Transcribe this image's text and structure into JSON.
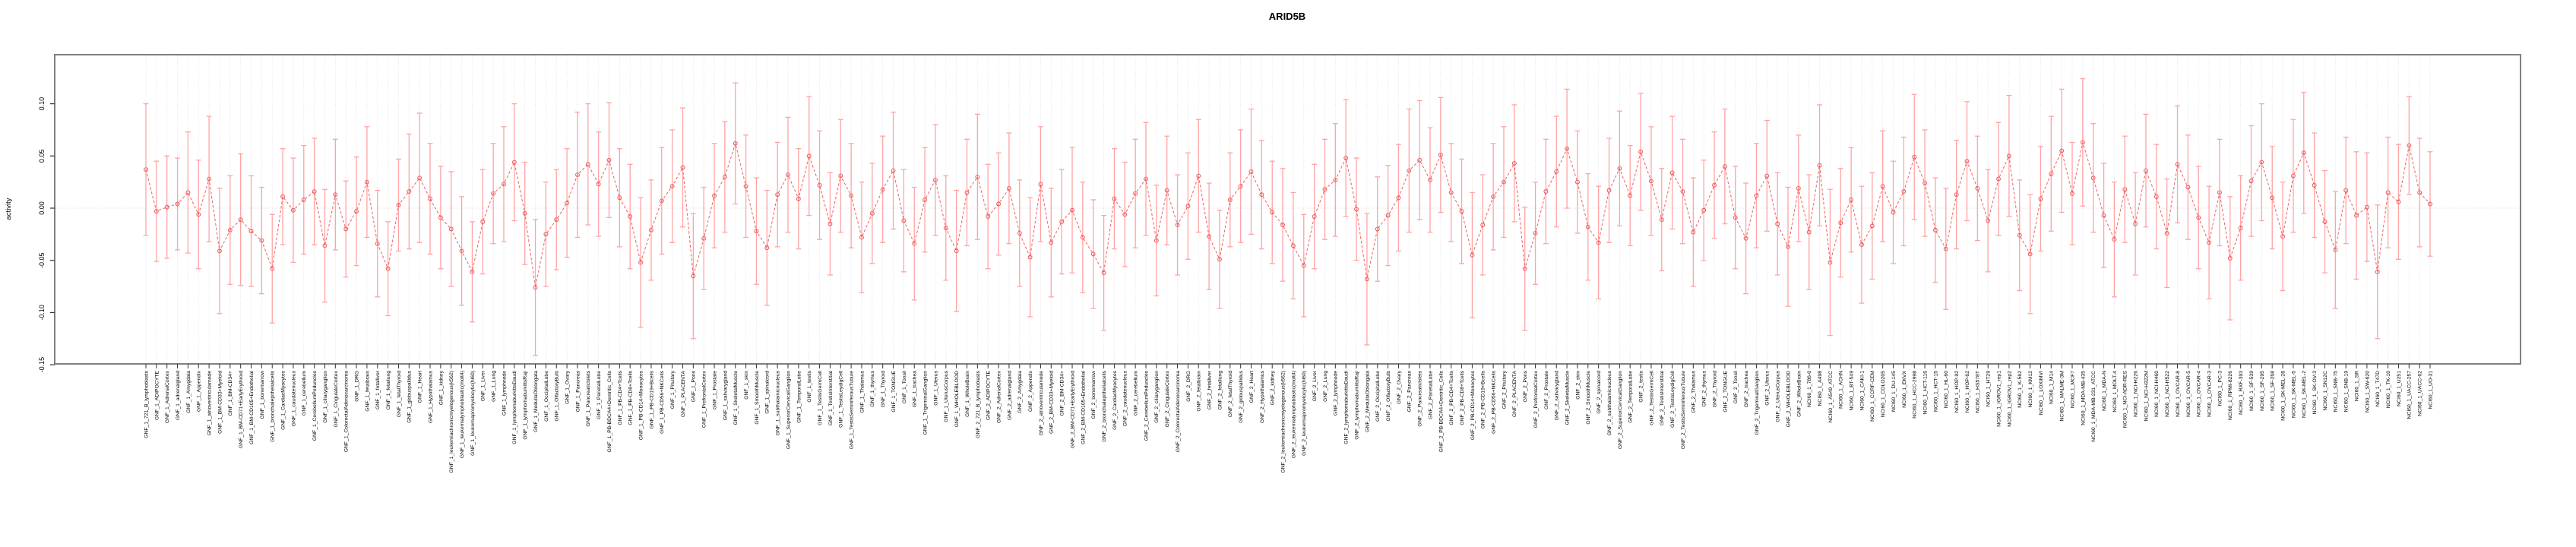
{
  "chart_data": {
    "type": "line",
    "title": "ARID5B",
    "ylabel": "activity",
    "xlabel": "",
    "ylim": [
      -0.15,
      0.147
    ],
    "yticks": [
      0.1,
      0.05,
      0.0,
      -0.05,
      -0.1,
      -0.15
    ],
    "ytick_labels": [
      "0.10",
      "0.05",
      "0.00",
      "-0.05",
      "-0.10",
      "-0.15"
    ],
    "grid": "vertical dotted gridline per category, dotted horizontal line at y=0",
    "legend_position": "none",
    "point_style": "open-circle",
    "line_style": "dashed",
    "error_bars": true,
    "categories": [
      "GNF_1_721_B_lymphoblasts",
      "GNF_1_ADIPOCYTE",
      "GNF_1_AdrenalCortex",
      "GNF_1_adrenalgland",
      "GNF_1_Amygdala",
      "GNF_1_Appendix",
      "GNF_1_atrioventricularnode",
      "GNF_1_BM-CD33+Myeloid",
      "GNF_1_BM-CD34+",
      "GNF_1_BM-CD71+EarlyErythroid",
      "GNF_1_BM-CD105+Endothelial",
      "GNF_1_bonemarrow",
      "GNF_1_bronchialepithelialcells",
      "GNF_1_CardiacMyocytes",
      "GNF_1_caudatenucleus",
      "GNF_1_cerebellum",
      "GNF_1_CerebellumPeduncles",
      "GNF_1_ciliaryganglion",
      "GNF_1_CingulateCortex",
      "GNF_1_ColorectalAdenocarcinoma",
      "GNF_1_DRG",
      "GNF_1_fetalbrain",
      "GNF_1_fetalliver",
      "GNF_1_fetallung",
      "GNF_1_fetalThyroid",
      "GNF_1_globuspallidus",
      "GNF_1_Heart",
      "GNF_1_Hypothalamus",
      "GNF_1_kidney",
      "GNF_1_leukemiachronicmyelogenous(k562)",
      "GNF_1_leukemialymphoblastic(molt4)",
      "GNF_1_leukemiapromyelocytic(hl60)",
      "GNF_1_Liver",
      "GNF_1_Lung",
      "GNF_1_lymphnode",
      "GNF_1_lymphomaburkittsDaudi",
      "GNF_1_lymphomaburkittsRaji",
      "GNF_1_MedullaOblongata",
      "GNF_1_OccipitalLobe",
      "GNF_1_OlfactoryBulb",
      "GNF_1_Ovary",
      "GNF_1_Pancreas",
      "GNF_1_PancreaticIslets",
      "GNF_1_ParietalLobe",
      "GNF_1_PB-BDCA4+Dentritic_Cells",
      "GNF_1_PB-CD4+Tcells",
      "GNF_1_PB-CD8+Tcells",
      "GNF_1_PB-CD14+Monocytes",
      "GNF_1_PB-CD19+Bcells",
      "GNF_1_PB-CD56+NKCells",
      "GNF_1_Pituitary",
      "GNF_1_PLACENTA",
      "GNF_1_Pons",
      "GNF_1_PrefrontalCortex",
      "GNF_1_Prostate",
      "GNF_1_salivarygland",
      "GNF_1_SkeletalMuscle",
      "GNF_1_skin",
      "GNF_1_SmoothMuscle",
      "GNF_1_spinalcord",
      "GNF_1_subthalamicnucleus",
      "GNF_1_SuperiorCervicalGanglion",
      "GNF_1_TemporalLobe",
      "GNF_1_testis",
      "GNF_1_TestisGermCell",
      "GNF_1_TestisInterstitial",
      "GNF_1_TestisLeydigCell",
      "GNF_1_TestisSeminiferousTubule",
      "GNF_1_Thalamus",
      "GNF_1_thymus",
      "GNF_1_Thyroid",
      "GNF_1_TONGUE",
      "GNF_1_Tonsil",
      "GNF_1_trachea",
      "GNF_1_TrigeminalGanglion",
      "GNF_1_Uterus",
      "GNF_1_UterusCorpus",
      "GNF_1_WHOLEBLOOD",
      "GNF_1_WholeBrain",
      "GNF_2_721_B_lymphoblasts",
      "GNF_2_ADIPOCYTE",
      "GNF_2_AdrenalCortex",
      "GNF_2_adrenalgland",
      "GNF_2_Amygdala",
      "GNF_2_Appendix",
      "GNF_2_atrioventricularnode",
      "GNF_2_BM-CD33+Myeloid",
      "GNF_2_BM-CD34+",
      "GNF_2_BM-CD71+EarlyErythroid",
      "GNF_2_BM-CD105+Endothelial",
      "GNF_2_bonemarrow",
      "GNF_2_bronchialepithelialcells",
      "GNF_2_CardiacMyocytes",
      "GNF_2_caudatenucleus",
      "GNF_2_cerebellum",
      "GNF_2_CerebellumPeduncles",
      "GNF_2_ciliaryganglion",
      "GNF_2_CingulateCortex",
      "GNF_2_ColorectalAdenocarcinoma",
      "GNF_2_DRG",
      "GNF_2_fetalbrain",
      "GNF_2_fetalliver",
      "GNF_2_fetallung",
      "GNF_2_fetalThyroid",
      "GNF_2_globuspallidus",
      "GNF_2_Heart",
      "GNF_2_Hypothalamus",
      "GNF_2_kidney",
      "GNF_2_leukemiachronicmyelogenous(k562)",
      "GNF_2_leukemialymphoblastic(molt4)",
      "GNF_2_leukemiapromyelocytic(hl60)",
      "GNF_2_Liver",
      "GNF_2_Lung",
      "GNF_2_lymphnode",
      "GNF_2_lymphomaburkittsDaudi",
      "GNF_2_lymphomaburkittsRaji",
      "GNF_2_MedullaOblongata",
      "GNF_2_OccipitalLobe",
      "GNF_2_OlfactoryBulb",
      "GNF_2_Ovary",
      "GNF_2_Pancreas",
      "GNF_2_PancreaticIslets",
      "GNF_2_ParietalLobe",
      "GNF_2_PB-BDCA4+Dentritic_Cells",
      "GNF_2_PB-CD4+Tcells",
      "GNF_2_PB-CD8+Tcells",
      "GNF_2_PB-CD14+Monocytes",
      "GNF_2_PB-CD19+Bcells",
      "GNF_2_PB-CD56+NKCells",
      "GNF_2_Pituitary",
      "GNF_2_PLACENTA",
      "GNF_2_Pons",
      "GNF_2_PrefrontalCortex",
      "GNF_2_Prostate",
      "GNF_2_salivarygland",
      "GNF_2_SkeletalMuscle",
      "GNF_2_skin",
      "GNF_2_SmoothMuscle",
      "GNF_2_spinalcord",
      "GNF_2_subthalamicnucleus",
      "GNF_2_SuperiorCervicalGanglion",
      "GNF_2_TemporalLobe",
      "GNF_2_testis",
      "GNF_2_TestisGermCell",
      "GNF_2_TestisInterstitial",
      "GNF_2_TestisLeydigCell",
      "GNF_2_TestisSeminiferousTubule",
      "GNF_2_Thalamus",
      "GNF_2_thymus",
      "GNF_2_Thyroid",
      "GNF_2_TONGUE",
      "GNF_2_Tonsil",
      "GNF_2_trachea",
      "GNF_2_TrigeminalGanglion",
      "GNF_2_Uterus",
      "GNF_2_UterusCorpus",
      "GNF_2_WHOLEBLOOD",
      "GNF_2_WholeBrain",
      "NCI60_1_786-0",
      "NCI60_1_A498",
      "NCI60_1_A549_ATCC",
      "NCI60_1_ACHN",
      "NCI60_1_BT-549",
      "NCI60_1_CAKI-1",
      "NCI60_1_CCRF-CEM",
      "NCI60_1_COLO205",
      "NCI60_1_DU-145",
      "NCI60_1_EKVX",
      "NCI60_1_HCC-2998",
      "NCI60_1_HCT-116",
      "NCI60_1_HCT-15",
      "NCI60_1_HL-60",
      "NCI60_1_HOP-92",
      "NCI60_1_HOP-62",
      "NCI60_1_HS578T",
      "NCI60_1_HT29",
      "NCI60_1_IGROV1_rep1",
      "NCI60_1_IGROV1_rep2",
      "NCI60_1_K-562",
      "NCI60_1_KM12",
      "NCI60_1_LOXIMVI",
      "NCI60_1_M14",
      "NCI60_1_MALME-3M",
      "NCI60_1_MCF7",
      "NCI60_1_MDA-MB-435",
      "NCI60_1_MDA-MB-231_ATCC",
      "NCI60_1_MDA-N",
      "NCI60_1_MOLT-4",
      "NCI60_1_NCI-ADR-RES",
      "NCI60_1_NCI-H226",
      "NCI60_1_NCI-H322M",
      "NCI60_1_NCI-H460",
      "NCI60_1_NCI-H522",
      "NCI60_1_OVCAR-8",
      "NCI60_1_OVCAR-5",
      "NCI60_1_OVCAR-4",
      "NCI60_1_OVCAR-3",
      "NCI60_1_PC-3",
      "NCI60_1_RPMI-8226",
      "NCI60_1_RXF-393",
      "NCI60_1_SF-539",
      "NCI60_1_SF-295",
      "NCI60_1_SF-268",
      "NCI60_1_SK-MEL-28",
      "NCI60_1_SK-MEL-5",
      "NCI60_1_SK-MEL-2",
      "NCI60_1_SK-OV-3",
      "NCI60_1_SN12C",
      "NCI60_1_SNB-75",
      "NCI60_1_SNB-19",
      "NCI60_1_SR",
      "NCI60_1_SW-620",
      "NCI60_1_T47D",
      "NCI60_1_TK-10",
      "NCI60_1_U251",
      "NCI60_1_UACC-257",
      "NCI60_1_UACC-62",
      "NCI60_1_UO-31"
    ],
    "series": [
      {
        "name": "activity",
        "values": [
          0.037,
          -0.003,
          0.001,
          0.004,
          0.015,
          -0.006,
          0.028,
          -0.041,
          -0.021,
          -0.011,
          -0.022,
          -0.031,
          -0.058,
          0.011,
          -0.002,
          0.008,
          0.016,
          -0.036,
          0.013,
          -0.02,
          -0.003,
          0.025,
          -0.034,
          -0.058,
          0.003,
          0.016,
          0.029,
          0.009,
          -0.009,
          -0.02,
          -0.041,
          -0.061,
          -0.013,
          0.014,
          0.023,
          0.044,
          -0.005,
          -0.076,
          -0.025,
          -0.011,
          0.005,
          0.032,
          0.042,
          0.023,
          0.046,
          0.01,
          -0.008,
          -0.052,
          -0.021,
          0.007,
          0.021,
          0.039,
          -0.065,
          -0.029,
          0.012,
          0.03,
          0.062,
          0.021,
          -0.022,
          -0.038,
          0.013,
          0.032,
          0.009,
          0.05,
          0.022,
          -0.015,
          0.031,
          0.012,
          -0.028,
          -0.005,
          0.018,
          0.036,
          -0.012,
          -0.034,
          0.008,
          0.027,
          -0.019,
          -0.041,
          0.015,
          0.03,
          -0.008,
          0.004,
          0.019,
          -0.024,
          -0.047,
          0.023,
          -0.033,
          -0.013,
          -0.002,
          -0.028,
          -0.044,
          -0.062,
          0.009,
          -0.006,
          0.014,
          0.028,
          -0.031,
          0.017,
          -0.016,
          0.002,
          0.031,
          -0.027,
          -0.049,
          0.008,
          0.021,
          0.035,
          0.013,
          -0.004,
          -0.016,
          -0.036,
          -0.055,
          -0.008,
          0.018,
          0.027,
          0.048,
          -0.001,
          -0.068,
          -0.02,
          -0.007,
          0.01,
          0.036,
          0.046,
          0.027,
          0.051,
          0.015,
          -0.003,
          -0.045,
          -0.016,
          0.011,
          0.025,
          0.043,
          -0.058,
          -0.024,
          0.016,
          0.035,
          0.057,
          0.025,
          -0.018,
          -0.033,
          0.017,
          0.038,
          0.012,
          0.054,
          0.026,
          -0.011,
          0.034,
          0.016,
          -0.023,
          -0.002,
          0.022,
          0.04,
          -0.009,
          -0.029,
          0.012,
          0.031,
          -0.015,
          -0.037,
          0.019,
          -0.023,
          0.041,
          -0.052,
          -0.014,
          0.008,
          -0.035,
          -0.017,
          0.021,
          -0.004,
          0.016,
          0.049,
          0.024,
          -0.021,
          -0.039,
          0.013,
          0.045,
          0.019,
          -0.012,
          0.028,
          0.05,
          -0.026,
          -0.044,
          0.009,
          0.033,
          0.055,
          0.014,
          0.063,
          0.029,
          -0.007,
          -0.03,
          0.018,
          -0.015,
          0.036,
          0.011,
          -0.024,
          0.042,
          0.02,
          -0.009,
          -0.033,
          0.015,
          -0.048,
          -0.019,
          0.026,
          0.044,
          0.01,
          -0.027,
          0.031,
          0.053,
          0.022,
          -0.013,
          -0.04,
          0.017,
          -0.007,
          0.001,
          -0.061,
          0.015,
          0.006,
          0.06,
          0.015,
          0.004
        ],
        "errors": [
          0.063,
          0.048,
          0.049,
          0.044,
          0.058,
          0.052,
          0.06,
          0.06,
          0.052,
          0.063,
          0.053,
          0.051,
          0.052,
          0.046,
          0.05,
          0.052,
          0.051,
          0.054,
          0.053,
          0.046,
          0.052,
          0.053,
          0.051,
          0.045,
          0.044,
          0.055,
          0.062,
          0.053,
          0.049,
          0.055,
          0.052,
          0.048,
          0.05,
          0.048,
          0.055,
          0.056,
          0.049,
          0.065,
          0.05,
          0.048,
          0.052,
          0.06,
          0.058,
          0.05,
          0.055,
          0.047,
          0.05,
          0.062,
          0.048,
          0.051,
          0.054,
          0.057,
          0.06,
          0.049,
          0.05,
          0.053,
          0.058,
          0.049,
          0.051,
          0.055,
          0.05,
          0.055,
          0.048,
          0.057,
          0.052,
          0.049,
          0.054,
          0.05,
          0.053,
          0.048,
          0.051,
          0.056,
          0.049,
          0.054,
          0.05,
          0.053,
          0.05,
          0.058,
          0.051,
          0.06,
          0.05,
          0.049,
          0.053,
          0.051,
          0.057,
          0.055,
          0.052,
          0.05,
          0.06,
          0.053,
          0.052,
          0.055,
          0.048,
          0.05,
          0.052,
          0.054,
          0.053,
          0.052,
          0.048,
          0.051,
          0.054,
          0.051,
          0.047,
          0.045,
          0.054,
          0.06,
          0.052,
          0.049,
          0.054,
          0.051,
          0.049,
          0.05,
          0.048,
          0.054,
          0.056,
          0.049,
          0.063,
          0.05,
          0.048,
          0.051,
          0.059,
          0.057,
          0.05,
          0.055,
          0.047,
          0.05,
          0.06,
          0.048,
          0.051,
          0.053,
          0.056,
          0.059,
          0.049,
          0.05,
          0.053,
          0.057,
          0.049,
          0.051,
          0.054,
          0.05,
          0.055,
          0.048,
          0.056,
          0.052,
          0.049,
          0.054,
          0.05,
          0.052,
          0.048,
          0.051,
          0.055,
          0.049,
          0.053,
          0.05,
          0.053,
          0.049,
          0.057,
          0.051,
          0.055,
          0.058,
          0.07,
          0.052,
          0.05,
          0.056,
          0.051,
          0.053,
          0.049,
          0.052,
          0.06,
          0.051,
          0.05,
          0.058,
          0.052,
          0.057,
          0.05,
          0.049,
          0.054,
          0.058,
          0.053,
          0.057,
          0.05,
          0.055,
          0.059,
          0.049,
          0.061,
          0.052,
          0.05,
          0.055,
          0.051,
          0.049,
          0.054,
          0.05,
          0.052,
          0.056,
          0.05,
          0.049,
          0.054,
          0.051,
          0.059,
          0.05,
          0.053,
          0.056,
          0.049,
          0.052,
          0.054,
          0.058,
          0.05,
          0.049,
          0.056,
          0.051,
          0.061,
          0.052,
          0.064,
          0.053,
          0.055,
          0.047,
          0.052,
          0.05
        ]
      }
    ]
  },
  "colors": {
    "point_line": "#f15f5f",
    "error_bar": "#ffa3a3",
    "gridline": "#d9d9d9",
    "box_border": "#808080",
    "tick": "#333333",
    "text": "#000000",
    "background": "#ffffff"
  },
  "geometry_note": "plot box left 72, right 3317, top 72, bottom 479; first category x 192, spacing 13.85; y 0.00 at 274, 0.05 per 68.7px"
}
